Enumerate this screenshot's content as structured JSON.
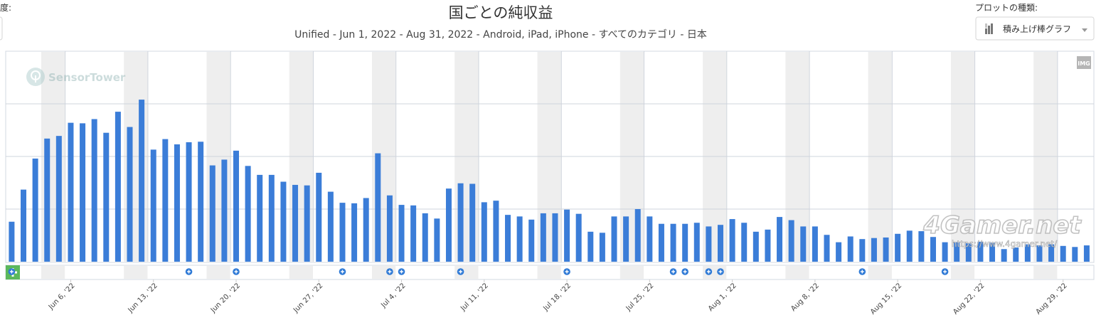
{
  "header": {
    "left_cutoff_label": "度:",
    "plot_type_label": "プロットの種類:",
    "plot_type_value": "積み上げ棒グラフ",
    "img_label": "IMG"
  },
  "watermarks": {
    "sensor_tower": "SensorTower",
    "site_logo": "4Gamer.net",
    "site_url": "https://www.4gamer.net/"
  },
  "colors": {
    "bar": "#3b7dd8",
    "weekend_band": "#eeeeee",
    "grid": "#cfd4dc",
    "event_marker": "#2f7ad6",
    "add_button": "#5cb85c"
  },
  "chart_data": {
    "type": "bar",
    "title": "国ごとの純収益",
    "subtitle": "Unified - Jun 1, 2022 - Aug 31, 2022 - Android, iPad, iPhone - すべてのカテゴリ - 日本",
    "xlabel": "",
    "ylabel": "",
    "x_range": [
      "2022-06-01",
      "2022-08-31"
    ],
    "tick_labels": [
      "Jun 6, '22",
      "Jun 13, '22",
      "Jun 20, '22",
      "Jun 27, '22",
      "Jul 4, '22",
      "Jul 11, '22",
      "Jul 18, '22",
      "Jul 25, '22",
      "Aug 1, '22",
      "Aug 8, '22",
      "Aug 15, '22",
      "Aug 22, '22",
      "Aug 29, '22"
    ],
    "y_axis_labels_visible": false,
    "grid": true,
    "legend": "none",
    "values": [
      0.76,
      1.37,
      1.96,
      2.34,
      2.39,
      2.64,
      2.63,
      2.71,
      2.45,
      2.85,
      2.56,
      3.08,
      2.13,
      2.33,
      2.23,
      2.27,
      2.28,
      1.83,
      1.94,
      2.11,
      1.82,
      1.65,
      1.65,
      1.52,
      1.46,
      1.45,
      1.69,
      1.33,
      1.12,
      1.11,
      1.21,
      2.06,
      1.26,
      1.08,
      1.07,
      0.92,
      0.82,
      1.39,
      1.49,
      1.48,
      1.13,
      1.16,
      0.89,
      0.86,
      0.8,
      0.92,
      0.92,
      0.99,
      0.91,
      0.57,
      0.55,
      0.86,
      0.86,
      1.0,
      0.86,
      0.72,
      0.72,
      0.72,
      0.74,
      0.67,
      0.7,
      0.81,
      0.74,
      0.57,
      0.61,
      0.85,
      0.79,
      0.67,
      0.67,
      0.51,
      0.37,
      0.48,
      0.43,
      0.45,
      0.46,
      0.53,
      0.59,
      0.58,
      0.47,
      0.37,
      0.37,
      0.35,
      0.38,
      0.36,
      0.24,
      0.27,
      0.33,
      0.31,
      0.33,
      0.3,
      0.28,
      0.31
    ],
    "ylim": [
      0,
      4.0
    ],
    "event_dates": [
      "2022-06-01",
      "2022-06-16",
      "2022-06-20",
      "2022-06-29",
      "2022-07-03",
      "2022-07-04",
      "2022-07-09",
      "2022-07-18",
      "2022-07-27",
      "2022-07-28",
      "2022-07-30",
      "2022-07-31",
      "2022-08-12",
      "2022-08-19"
    ]
  }
}
